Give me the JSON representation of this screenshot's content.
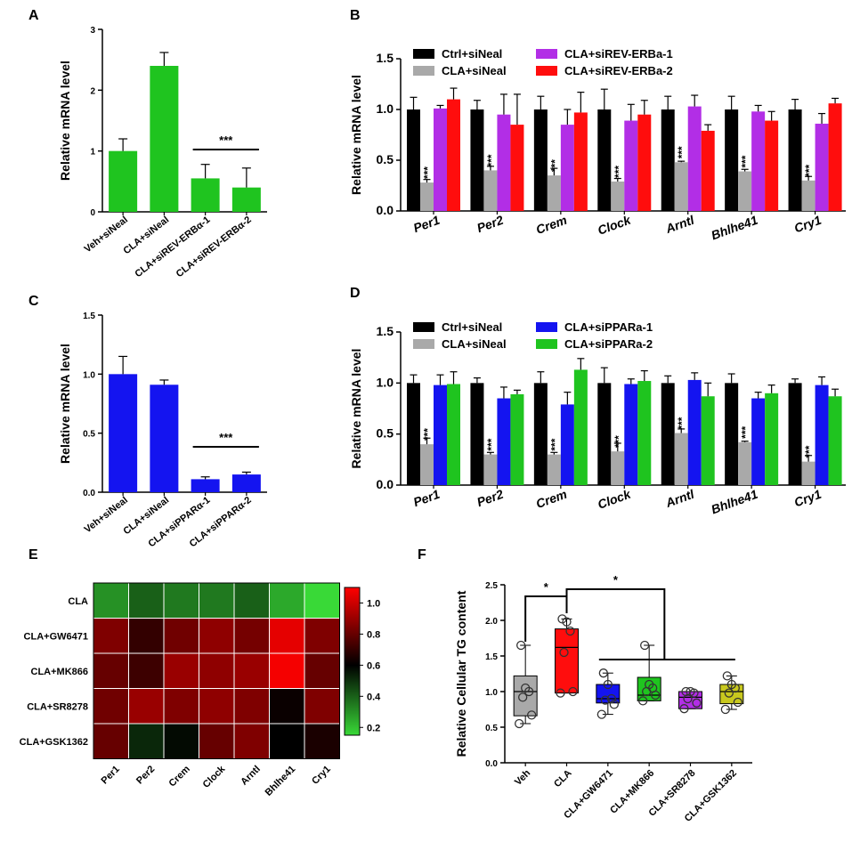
{
  "chart_data": [
    {
      "panel": "A",
      "type": "bar",
      "ylabel": "Relative mRNA level",
      "ylim": [
        0,
        3
      ],
      "yticks": [
        "0",
        "1",
        "2",
        "3"
      ],
      "categories": [
        "Veh+siNeal",
        "CLA+siNeal",
        "CLA+siREV-ERBα-1",
        "CLA+siREV-ERBα-2"
      ],
      "values": [
        1.0,
        2.4,
        0.55,
        0.4
      ],
      "errors": [
        0.2,
        0.22,
        0.23,
        0.32
      ],
      "color": "#1fc41f",
      "annotation": "***"
    },
    {
      "panel": "B",
      "type": "bar",
      "ylabel": "Relative mRNA level",
      "ylim": [
        0,
        1.5
      ],
      "yticks": [
        "0.0",
        "0.5",
        "1.0",
        "1.5"
      ],
      "categories": [
        "Per1",
        "Per2",
        "Crem",
        "Clock",
        "Arntl",
        "Bhlhe41",
        "Cry1"
      ],
      "series": [
        {
          "name": "Ctrl+siNeal",
          "color": "#000000",
          "values": [
            1.0,
            1.0,
            1.0,
            1.0,
            1.0,
            1.0,
            1.0
          ],
          "errors": [
            0.12,
            0.09,
            0.13,
            0.2,
            0.13,
            0.13,
            0.1
          ]
        },
        {
          "name": "CLA+siNeal",
          "color": "#a9a9a9",
          "values": [
            0.28,
            0.4,
            0.35,
            0.29,
            0.48,
            0.39,
            0.3
          ],
          "errors": [
            0.03,
            0.04,
            0.07,
            0.03,
            0.01,
            0.02,
            0.04
          ]
        },
        {
          "name": "CLA+siREV-ERBa-1",
          "color": "#b22ee6",
          "values": [
            1.01,
            0.95,
            0.85,
            0.89,
            1.03,
            0.98,
            0.86
          ],
          "errors": [
            0.03,
            0.2,
            0.15,
            0.16,
            0.11,
            0.06,
            0.1
          ]
        },
        {
          "name": "CLA+siREV-ERBa-2",
          "color": "#ff0d0d",
          "values": [
            1.1,
            0.85,
            0.97,
            0.95,
            0.79,
            0.89,
            1.06
          ],
          "errors": [
            0.11,
            0.3,
            0.2,
            0.14,
            0.06,
            0.09,
            0.05
          ]
        }
      ],
      "annotation": "***"
    },
    {
      "panel": "C",
      "type": "bar",
      "ylabel": "Relative mRNA level",
      "ylim": [
        0,
        1.5
      ],
      "yticks": [
        "0.0",
        "0.5",
        "1.0",
        "1.5"
      ],
      "categories": [
        "Veh+siNeal",
        "CLA+siNeal",
        "CLA+siPPARα-1",
        "CLA+siPPARα-2"
      ],
      "values": [
        1.0,
        0.91,
        0.11,
        0.15
      ],
      "errors": [
        0.15,
        0.04,
        0.02,
        0.02
      ],
      "color": "#1414f0",
      "annotation": "***"
    },
    {
      "panel": "D",
      "type": "bar",
      "ylabel": "Relative mRNA level",
      "ylim": [
        0,
        1.5
      ],
      "yticks": [
        "0.0",
        "0.5",
        "1.0",
        "1.5"
      ],
      "categories": [
        "Per1",
        "Per2",
        "Crem",
        "Clock",
        "Arntl",
        "Bhlhe41",
        "Cry1"
      ],
      "series": [
        {
          "name": "Ctrl+siNeal",
          "color": "#000000",
          "values": [
            1.0,
            1.0,
            1.0,
            1.0,
            1.0,
            1.0,
            1.0
          ],
          "errors": [
            0.08,
            0.05,
            0.11,
            0.15,
            0.07,
            0.09,
            0.04
          ]
        },
        {
          "name": "CLA+siNeal",
          "color": "#a9a9a9",
          "values": [
            0.4,
            0.3,
            0.3,
            0.33,
            0.51,
            0.42,
            0.23
          ],
          "errors": [
            0.06,
            0.02,
            0.02,
            0.08,
            0.04,
            0.01,
            0.06
          ]
        },
        {
          "name": "CLA+siPPARa-1",
          "color": "#1414f0",
          "values": [
            0.98,
            0.85,
            0.79,
            0.99,
            1.03,
            0.85,
            0.98
          ],
          "errors": [
            0.1,
            0.11,
            0.12,
            0.05,
            0.07,
            0.06,
            0.08
          ]
        },
        {
          "name": "CLA+siPPARa-2",
          "color": "#1fc41f",
          "values": [
            0.99,
            0.89,
            1.13,
            1.02,
            0.87,
            0.9,
            0.87
          ],
          "errors": [
            0.12,
            0.04,
            0.11,
            0.1,
            0.13,
            0.08,
            0.07
          ]
        }
      ],
      "annotation": "***"
    },
    {
      "panel": "E",
      "type": "heatmap",
      "rows": [
        "CLA",
        "CLA+GW6471",
        "CLA+MK866",
        "CLA+SR8278",
        "CLA+GSK1362"
      ],
      "columns": [
        "Per1",
        "Per2",
        "Crem",
        "Clock",
        "Arntl",
        "Bhlhe41",
        "Cry1"
      ],
      "values": [
        [
          0.3,
          0.4,
          0.35,
          0.35,
          0.4,
          0.25,
          0.15
        ],
        [
          0.85,
          0.7,
          0.82,
          0.88,
          0.83,
          1.05,
          0.85
        ],
        [
          0.8,
          0.72,
          0.9,
          0.88,
          0.9,
          1.08,
          0.8
        ],
        [
          0.82,
          0.9,
          0.85,
          0.88,
          0.85,
          0.62,
          0.85
        ],
        [
          0.8,
          0.52,
          0.58,
          0.8,
          0.85,
          0.6,
          0.65
        ]
      ],
      "colorbar": {
        "min": 0.15,
        "max": 1.1,
        "ticks": [
          "1.0",
          "0.8",
          "0.6",
          "0.4",
          "0.2"
        ]
      }
    },
    {
      "panel": "F",
      "type": "box",
      "ylabel": "Relative Cellular TG content",
      "ylim": [
        0,
        2.5
      ],
      "yticks": [
        "0.0",
        "0.5",
        "1.0",
        "1.5",
        "2.0",
        "2.5"
      ],
      "categories": [
        "Veh",
        "CLA",
        "CLA+GW6471",
        "CLA+MK866",
        "CLA+SR8278",
        "CLA+GSK1362"
      ],
      "colors": [
        "#a9a9a9",
        "#ff0d0d",
        "#1414f0",
        "#1fc41f",
        "#b22ee6",
        "#c8c81e"
      ],
      "boxes": [
        {
          "min": 0.55,
          "q1": 0.66,
          "median": 1.0,
          "q3": 1.22,
          "max": 1.65
        },
        {
          "min": 0.98,
          "q1": 0.98,
          "median": 1.62,
          "q3": 1.88,
          "max": 2.02
        },
        {
          "min": 0.68,
          "q1": 0.84,
          "median": 0.9,
          "q3": 1.1,
          "max": 1.26
        },
        {
          "min": 0.87,
          "q1": 0.87,
          "median": 0.95,
          "q3": 1.2,
          "max": 1.65
        },
        {
          "min": 0.76,
          "q1": 0.76,
          "median": 0.92,
          "q3": 1.0,
          "max": 1.0
        },
        {
          "min": 0.75,
          "q1": 0.83,
          "median": 1.0,
          "q3": 1.1,
          "max": 1.22
        }
      ],
      "points": [
        [
          0.55,
          0.67,
          0.92,
          1.0,
          1.05,
          1.65
        ],
        [
          0.98,
          1.0,
          1.55,
          1.85,
          1.98,
          2.02
        ],
        [
          0.68,
          0.82,
          0.88,
          0.9,
          1.1,
          1.26
        ],
        [
          0.87,
          0.95,
          1.0,
          1.05,
          1.1,
          1.65
        ],
        [
          0.76,
          0.84,
          0.9,
          0.98,
          1.0,
          1.0
        ],
        [
          0.75,
          0.85,
          0.98,
          1.05,
          1.1,
          1.22
        ]
      ],
      "annotation": "*"
    }
  ],
  "panel_letters": [
    "A",
    "B",
    "C",
    "D",
    "E",
    "F"
  ]
}
